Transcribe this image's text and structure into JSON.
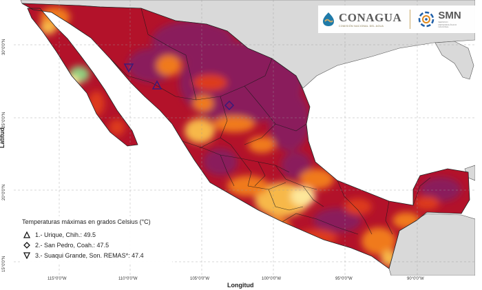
{
  "map": {
    "axis_y_title": "Latitud",
    "axis_x_title": "Longitud",
    "lat_ticks": [
      "30°0'0\"N",
      "25°0'0\"N",
      "20°0'0\"N",
      "15°0'0\"N"
    ],
    "lon_ticks": [
      "115°0'0\"W",
      "110°0'0\"W",
      "105°0'0\"W",
      "100°0'0\"W",
      "95°0'0\"W",
      "90°0'0\"W"
    ],
    "colors": {
      "ocean": "#ffffff",
      "land_outside": "#d9d9d9",
      "hottest": "#8a1f5c",
      "very_hot": "#b3122a",
      "hot": "#dd3b1a",
      "warm": "#f07a1e",
      "mild": "#f7b84a",
      "cool": "#fde79a",
      "coolest": "#8fcf7e"
    }
  },
  "logos": {
    "conagua_name": "CONAGUA",
    "conagua_sub": "COMISIÓN NACIONAL DEL AGUA",
    "smn_name": "SMN",
    "smn_sub": "SERVICIO METEOROLÓGICO NACIONAL"
  },
  "legend": {
    "title": "Temperaturas máximas en grados Celsius (°C)",
    "items": [
      {
        "symbol": "triangle-up",
        "text": "1.- Urique, Chih.: 49.5"
      },
      {
        "symbol": "diamond",
        "text": "2.- San Pedro, Coah.: 47.5"
      },
      {
        "symbol": "triangle-down",
        "text": "3.- Suaqui Grande, Son. REMAS*: 47.4"
      }
    ]
  }
}
